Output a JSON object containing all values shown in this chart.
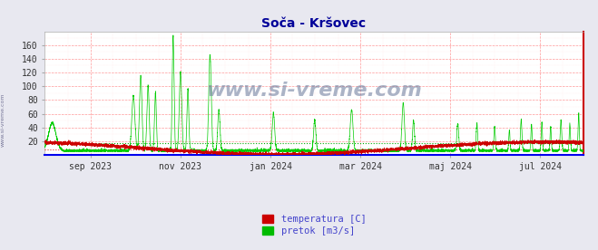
{
  "title": "Soča - Kršovec",
  "title_color": "#000099",
  "bg_color": "#e8e8f0",
  "plot_bg_color": "#ffffff",
  "grid_color_major": "#ff9999",
  "grid_color_minor": "#ffdddd",
  "ylim": [
    0,
    180
  ],
  "yticks": [
    20,
    40,
    60,
    80,
    100,
    120,
    140,
    160
  ],
  "x_tick_labels": [
    "sep 2023",
    "nov 2023",
    "jan 2024",
    "mar 2024",
    "maj 2024",
    "jul 2024"
  ],
  "avg_temp_color": "#dd3333",
  "avg_flow_color": "#00aa00",
  "temp_line_color": "#cc0000",
  "flow_line_color": "#00cc00",
  "axis_bottom_color": "#0000ee",
  "axis_right_color": "#cc0000",
  "watermark": "www.si-vreme.com",
  "legend_temp_label": "temperatura [C]",
  "legend_flow_label": "pretok [m3/s]",
  "legend_temp_color": "#cc0000",
  "legend_flow_color": "#00bb00",
  "legend_text_color": "#4444cc"
}
